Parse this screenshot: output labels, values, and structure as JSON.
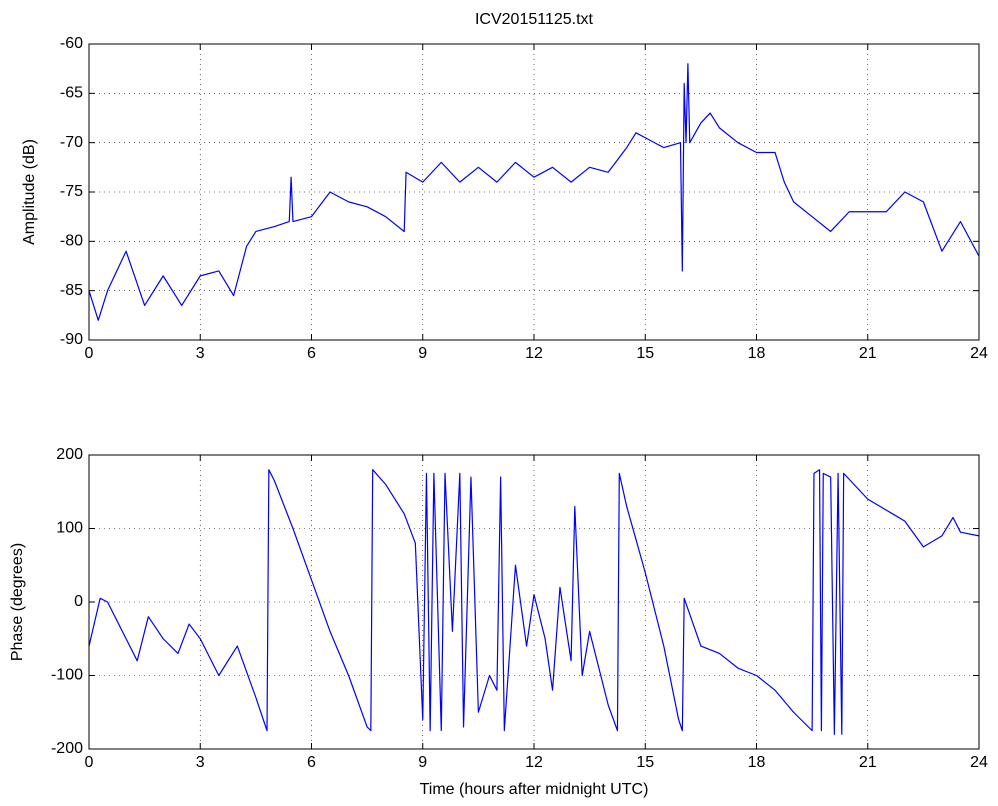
{
  "chart_data": [
    {
      "type": "line",
      "title": "ICV20151125.txt",
      "y_label": "Amplitude (dB)",
      "xlim": [
        0,
        24
      ],
      "xticks": [
        0,
        3,
        6,
        9,
        12,
        15,
        18,
        21,
        24
      ],
      "ylim": [
        -90,
        -60
      ],
      "yticks": [
        -90,
        -85,
        -80,
        -75,
        -70,
        -65,
        -60
      ],
      "grid": true,
      "series": [
        {
          "color": "#0000ff",
          "x": [
            0,
            0.25,
            0.5,
            1,
            1.5,
            2,
            2.5,
            3,
            3.5,
            3.9,
            4.25,
            4.5,
            5,
            5.4,
            5.45,
            5.5,
            6,
            6.5,
            7,
            7.5,
            8,
            8.5,
            8.55,
            9,
            9.5,
            10,
            10.5,
            11,
            11.5,
            12,
            12.5,
            13,
            13.5,
            14,
            14.5,
            14.75,
            15,
            15.5,
            15.95,
            16,
            16.05,
            16.1,
            16.15,
            16.2,
            16.5,
            16.75,
            17,
            17.5,
            18,
            18.5,
            18.75,
            19,
            19.5,
            20,
            20.5,
            21,
            21.5,
            22,
            22.5,
            23,
            23.5,
            24
          ],
          "values": [
            -85,
            -88,
            -85,
            -81,
            -86.5,
            -83.5,
            -86.5,
            -83.5,
            -83,
            -85.5,
            -80.5,
            -79,
            -78.5,
            -78,
            -73.5,
            -78,
            -77.5,
            -75,
            -76,
            -76.5,
            -77.5,
            -79,
            -73,
            -74,
            -72,
            -74,
            -72.5,
            -74,
            -72,
            -73.5,
            -72.5,
            -74,
            -72.5,
            -73,
            -70.5,
            -69,
            -69.5,
            -70.5,
            -70,
            -83,
            -64,
            -70,
            -62,
            -70,
            -68,
            -67,
            -68.5,
            -70,
            -71,
            -71,
            -74,
            -76,
            -77.5,
            -79,
            -77,
            -77,
            -77,
            -75,
            -76,
            -81,
            -78,
            -81.5
          ]
        }
      ]
    },
    {
      "type": "line",
      "x_label": "Time (hours after midnight UTC)",
      "y_label": "Phase (degrees)",
      "xlim": [
        0,
        24
      ],
      "xticks": [
        0,
        3,
        6,
        9,
        12,
        15,
        18,
        21,
        24
      ],
      "ylim": [
        -200,
        200
      ],
      "yticks": [
        -200,
        -100,
        0,
        100,
        200
      ],
      "grid": true,
      "series": [
        {
          "color": "#0000ff",
          "x": [
            0,
            0.3,
            0.5,
            1,
            1.3,
            1.6,
            2,
            2.4,
            2.7,
            3,
            3.5,
            4,
            4.5,
            4.8,
            4.85,
            5,
            5.5,
            6,
            6.5,
            7,
            7.5,
            7.6,
            7.65,
            8,
            8.5,
            8.8,
            9,
            9.1,
            9.2,
            9.3,
            9.5,
            9.6,
            9.8,
            10,
            10.1,
            10.3,
            10.5,
            10.8,
            11,
            11.1,
            11.2,
            11.5,
            11.8,
            12,
            12.3,
            12.5,
            12.7,
            13,
            13.1,
            13.3,
            13.5,
            14,
            14.25,
            14.3,
            14.5,
            15,
            15.5,
            15.9,
            16,
            16.05,
            16.5,
            17,
            17.5,
            18,
            18.5,
            19,
            19.5,
            19.55,
            19.7,
            19.75,
            19.8,
            20,
            20.1,
            20.2,
            20.3,
            20.35,
            21,
            21.5,
            22,
            22.5,
            23,
            23.3,
            23.5,
            24
          ],
          "values": [
            -60,
            5,
            0,
            -50,
            -80,
            -20,
            -50,
            -70,
            -30,
            -50,
            -100,
            -60,
            -130,
            -175,
            180,
            165,
            100,
            30,
            -40,
            -100,
            -170,
            -175,
            180,
            160,
            120,
            80,
            -160,
            175,
            -175,
            175,
            -175,
            175,
            -40,
            175,
            -170,
            170,
            -150,
            -100,
            -120,
            170,
            -175,
            50,
            -60,
            10,
            -50,
            -120,
            20,
            -80,
            130,
            -100,
            -40,
            -140,
            -175,
            175,
            130,
            40,
            -60,
            -160,
            -175,
            5,
            -60,
            -70,
            -90,
            -100,
            -120,
            -150,
            -175,
            175,
            180,
            -175,
            175,
            170,
            -180,
            175,
            -180,
            175,
            140,
            125,
            110,
            75,
            90,
            115,
            95,
            90
          ]
        }
      ]
    }
  ]
}
